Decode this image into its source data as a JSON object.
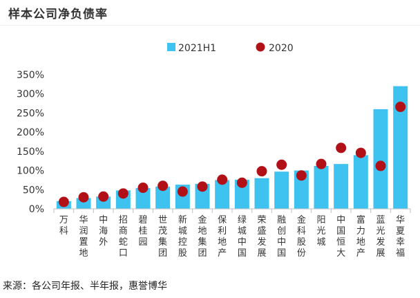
{
  "title": "样本公司净负债率",
  "source": "来源：各公司年报、半年报，惠誉博华",
  "colors": {
    "bar": "#3ec3f0",
    "dot": "#b01016",
    "axis": "#bfbfbf"
  },
  "chart_data": {
    "type": "bar",
    "title": "样本公司净负债率",
    "categories": [
      "万科",
      "华润置地",
      "中海外",
      "招商蛇口",
      "碧桂园",
      "世茂集团",
      "新城控股",
      "金地集团",
      "保利地产",
      "绿城中国",
      "荣盛发展",
      "融创中国",
      "金科股份",
      "阳光城",
      "中国恒大",
      "富力地产",
      "蓝光发展",
      "华夏幸福"
    ],
    "ylim": [
      0,
      350
    ],
    "yticks": [
      "0%",
      "50%",
      "100%",
      "150%",
      "200%",
      "250%",
      "300%",
      "350%"
    ],
    "legend_position": "top",
    "series": [
      {
        "name": "2021H1",
        "kind": "bar",
        "values": [
          20,
          28,
          32,
          48,
          54,
          58,
          63,
          65,
          75,
          76,
          80,
          97,
          100,
          112,
          117,
          140,
          260,
          320
        ]
      },
      {
        "name": "2020",
        "kind": "scatter",
        "values": [
          18,
          30,
          32,
          40,
          55,
          60,
          45,
          58,
          76,
          68,
          98,
          115,
          87,
          117,
          159,
          146,
          112,
          266
        ]
      }
    ]
  }
}
